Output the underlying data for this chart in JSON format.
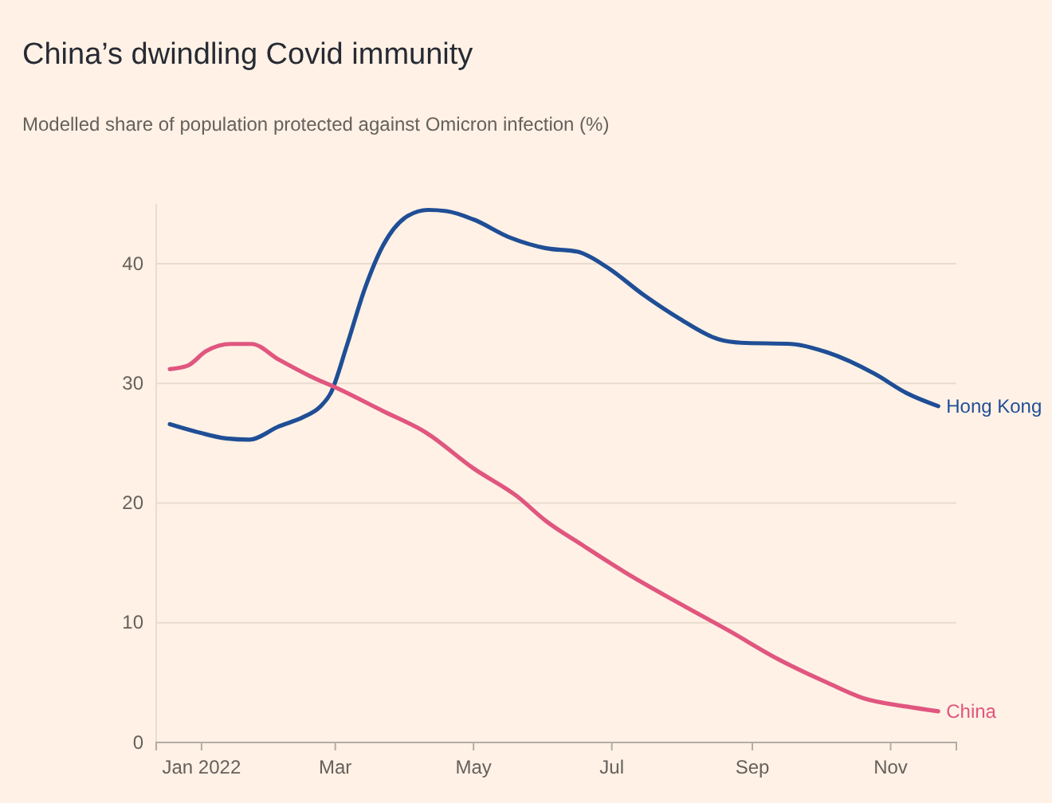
{
  "chart_data": {
    "type": "line",
    "title": "China’s dwindling Covid immunity",
    "subtitle": "Modelled share of population protected against Omicron infection (%)",
    "xlim": [
      "2021-12-12",
      "2022-11-30"
    ],
    "ylim": [
      0,
      45
    ],
    "xticks": [
      {
        "value": "2022-01-01",
        "label": "Jan 2022"
      },
      {
        "value": "2022-03-01",
        "label": "Mar"
      },
      {
        "value": "2022-05-01",
        "label": "May"
      },
      {
        "value": "2022-07-01",
        "label": "Jul"
      },
      {
        "value": "2022-09-01",
        "label": "Sep"
      },
      {
        "value": "2022-11-01",
        "label": "Nov"
      }
    ],
    "yticks": [
      0,
      10,
      20,
      30,
      40
    ],
    "grid": "y",
    "line_style": "solid",
    "series": [
      {
        "name": "Hong Kong",
        "color": "#1f4e96",
        "x": [
          "2021-12-18",
          "2021-12-29",
          "2022-01-12",
          "2022-01-22",
          "2022-02-04",
          "2022-02-15",
          "2022-02-22",
          "2022-02-27",
          "2022-03-06",
          "2022-03-14",
          "2022-03-22",
          "2022-04-02",
          "2022-04-11",
          "2022-04-19",
          "2022-05-01",
          "2022-05-17",
          "2022-06-02",
          "2022-06-16",
          "2022-06-29",
          "2022-07-15",
          "2022-07-31",
          "2022-08-17",
          "2022-08-27",
          "2022-09-18",
          "2022-10-04",
          "2022-10-25",
          "2022-11-08",
          "2022-11-22"
        ],
        "values": [
          26.6,
          26.0,
          25.4,
          25.3,
          26.4,
          27.2,
          28.0,
          29.2,
          33.1,
          37.9,
          41.5,
          44.0,
          44.5,
          44.4,
          43.7,
          42.2,
          41.3,
          41.0,
          39.7,
          37.4,
          35.4,
          33.7,
          33.4,
          33.3,
          32.6,
          30.8,
          29.2,
          28.1
        ]
      },
      {
        "name": "China",
        "color": "#e0567f",
        "x": [
          "2021-12-18",
          "2021-12-26",
          "2022-01-03",
          "2022-01-14",
          "2022-01-23",
          "2022-02-04",
          "2022-02-18",
          "2022-03-03",
          "2022-03-22",
          "2022-04-10",
          "2022-05-01",
          "2022-05-20",
          "2022-06-02",
          "2022-06-18",
          "2022-07-07",
          "2022-07-31",
          "2022-08-22",
          "2022-09-12",
          "2022-10-04",
          "2022-10-20",
          "2022-11-08",
          "2022-11-22"
        ],
        "values": [
          31.2,
          31.5,
          32.7,
          33.3,
          33.3,
          32.0,
          30.6,
          29.5,
          27.7,
          25.9,
          22.9,
          20.6,
          18.5,
          16.5,
          14.2,
          11.6,
          9.3,
          7.0,
          5.0,
          3.7,
          3.0,
          2.6
        ]
      }
    ]
  }
}
